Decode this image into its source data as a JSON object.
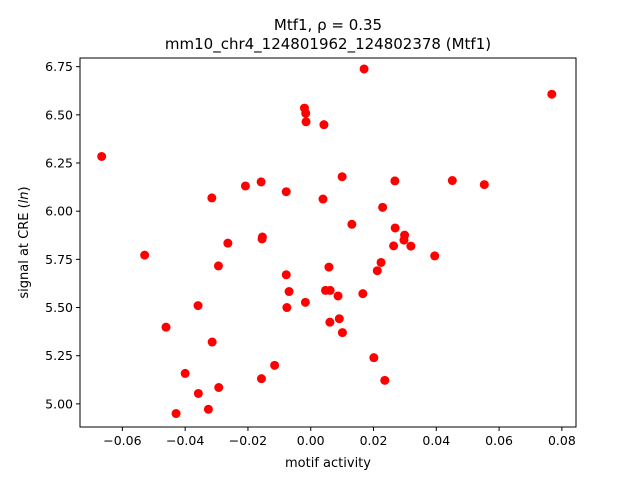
{
  "chart_data": {
    "type": "scatter",
    "title": "Mtf1, ρ = 0.35",
    "subtitle": "mm10_chr4_124801962_124802378 (Mtf1)",
    "xlabel": "motif activity",
    "ylabel_main": "signal at CRE (",
    "ylabel_italic": "ln",
    "ylabel_end": ")",
    "xlim": [
      -0.0735,
      0.0845
    ],
    "ylim": [
      4.88,
      6.795
    ],
    "xticks": [
      -0.06,
      -0.04,
      -0.02,
      0.0,
      0.02,
      0.04,
      0.06,
      0.08
    ],
    "xtick_labels": [
      "−0.06",
      "−0.04",
      "−0.02",
      "0.00",
      "0.02",
      "0.04",
      "0.06",
      "0.08"
    ],
    "yticks": [
      5.0,
      5.25,
      5.5,
      5.75,
      6.0,
      6.25,
      6.5,
      6.75
    ],
    "ytick_labels": [
      "5.00",
      "5.25",
      "5.50",
      "5.75",
      "6.00",
      "6.25",
      "6.50",
      "6.75"
    ],
    "grid": false,
    "marker_color": "#ff0000",
    "points": [
      {
        "x": -0.0666,
        "y": 6.284
      },
      {
        "x": -0.0529,
        "y": 5.772
      },
      {
        "x": -0.0461,
        "y": 5.398
      },
      {
        "x": -0.0429,
        "y": 4.95
      },
      {
        "x": -0.04,
        "y": 5.158
      },
      {
        "x": -0.0359,
        "y": 5.51
      },
      {
        "x": -0.0358,
        "y": 5.054
      },
      {
        "x": -0.0326,
        "y": 4.972
      },
      {
        "x": -0.0315,
        "y": 6.069
      },
      {
        "x": -0.0314,
        "y": 5.321
      },
      {
        "x": -0.0294,
        "y": 5.716
      },
      {
        "x": -0.0293,
        "y": 5.085
      },
      {
        "x": -0.0264,
        "y": 5.834
      },
      {
        "x": -0.0208,
        "y": 6.131
      },
      {
        "x": -0.0158,
        "y": 6.152
      },
      {
        "x": -0.0157,
        "y": 5.131
      },
      {
        "x": -0.0155,
        "y": 5.856
      },
      {
        "x": -0.0154,
        "y": 5.866
      },
      {
        "x": -0.0115,
        "y": 5.2
      },
      {
        "x": -0.0078,
        "y": 6.101
      },
      {
        "x": -0.0078,
        "y": 5.67
      },
      {
        "x": -0.0076,
        "y": 5.5
      },
      {
        "x": -0.0069,
        "y": 5.583
      },
      {
        "x": -0.002,
        "y": 6.535
      },
      {
        "x": -0.0016,
        "y": 6.508
      },
      {
        "x": -0.0015,
        "y": 6.464
      },
      {
        "x": -0.0017,
        "y": 5.527
      },
      {
        "x": 0.0039,
        "y": 6.063
      },
      {
        "x": 0.0042,
        "y": 6.449
      },
      {
        "x": 0.0047,
        "y": 5.589
      },
      {
        "x": 0.0058,
        "y": 5.71
      },
      {
        "x": 0.0062,
        "y": 5.589
      },
      {
        "x": 0.0061,
        "y": 5.424
      },
      {
        "x": 0.0087,
        "y": 5.56
      },
      {
        "x": 0.0091,
        "y": 5.442
      },
      {
        "x": 0.01,
        "y": 6.179
      },
      {
        "x": 0.0101,
        "y": 5.37
      },
      {
        "x": 0.0131,
        "y": 5.932
      },
      {
        "x": 0.0166,
        "y": 5.572
      },
      {
        "x": 0.017,
        "y": 6.738
      },
      {
        "x": 0.0201,
        "y": 5.24
      },
      {
        "x": 0.0212,
        "y": 5.691
      },
      {
        "x": 0.0224,
        "y": 5.734
      },
      {
        "x": 0.0229,
        "y": 6.02
      },
      {
        "x": 0.0236,
        "y": 5.122
      },
      {
        "x": 0.0264,
        "y": 5.82
      },
      {
        "x": 0.0268,
        "y": 6.157
      },
      {
        "x": 0.0269,
        "y": 5.913
      },
      {
        "x": 0.0297,
        "y": 5.85
      },
      {
        "x": 0.0299,
        "y": 5.876
      },
      {
        "x": 0.0319,
        "y": 5.819
      },
      {
        "x": 0.0395,
        "y": 5.768
      },
      {
        "x": 0.0451,
        "y": 6.159
      },
      {
        "x": 0.0553,
        "y": 6.138
      },
      {
        "x": 0.0768,
        "y": 6.607
      }
    ]
  }
}
